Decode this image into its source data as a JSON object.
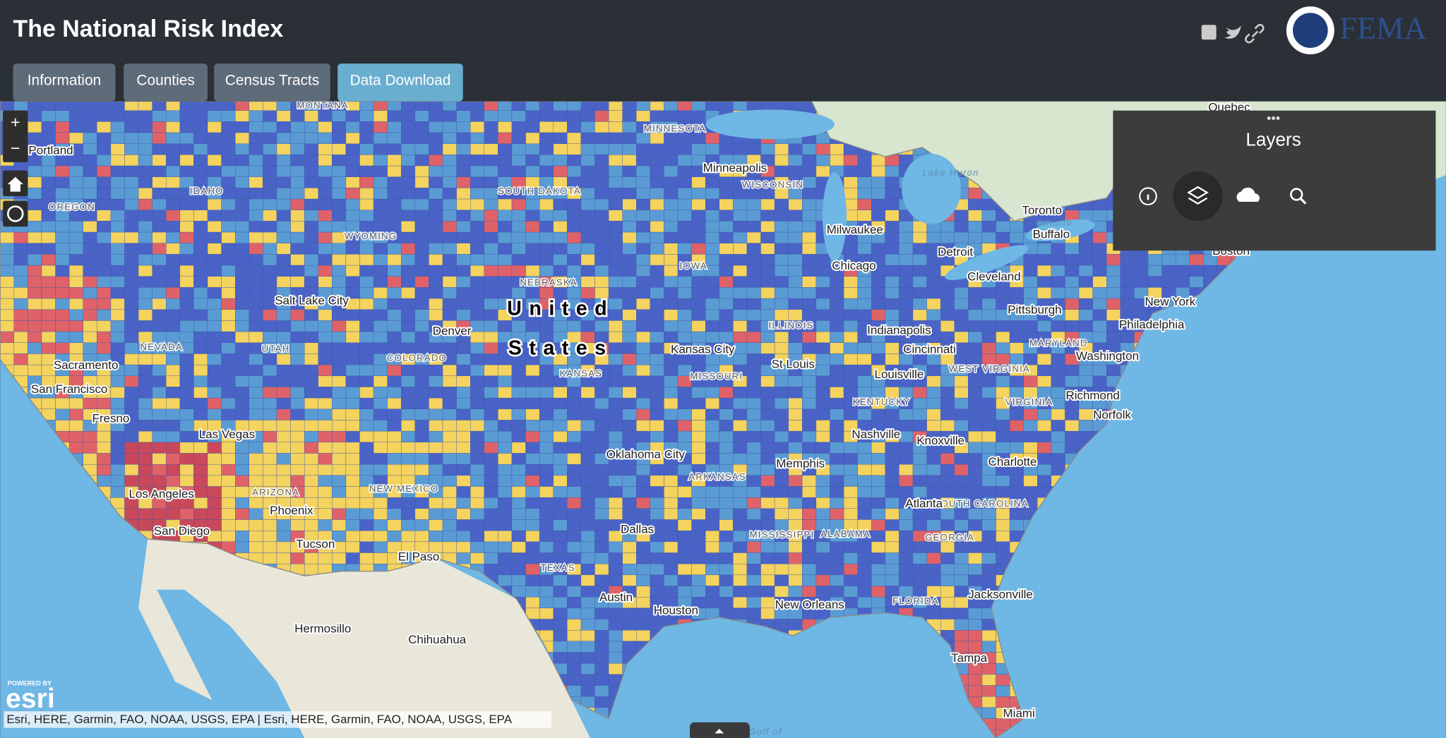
{
  "header": {
    "title": "The National Risk Index",
    "tabs": [
      "Information",
      "Counties",
      "Census Tracts",
      "Data Download"
    ],
    "logo": "FEMA"
  },
  "controls": {
    "zoom_in": "+",
    "zoom_out": "−"
  },
  "layers_panel": {
    "title": "Layers"
  },
  "map": {
    "country": [
      "United",
      "States"
    ],
    "cities": [
      "Portland",
      "Salt Lake City",
      "Denver",
      "Sacramento",
      "San Francisco",
      "Fresno",
      "Las Vegas",
      "Los Angeles",
      "San Diego",
      "Phoenix",
      "Tucson",
      "El Paso",
      "Minneapolis",
      "Milwaukee",
      "Chicago",
      "Detroit",
      "Toronto",
      "Buffalo",
      "Boston",
      "Cleveland",
      "Pittsburgh",
      "New York",
      "Philadelphia",
      "Kansas City",
      "St Louis",
      "Indianapolis",
      "Cincinnati",
      "Louisville",
      "Washington",
      "Richmond",
      "Norfolk",
      "Nashville",
      "Knoxville",
      "Charlotte",
      "Oklahoma City",
      "Memphis",
      "Atlanta",
      "Dallas",
      "Austin",
      "Houston",
      "New Orleans",
      "Jacksonville",
      "Tampa",
      "Miami",
      "Hermosillo",
      "Chihuahua",
      "Quebec"
    ],
    "states": [
      "MONTANA",
      "MINNESOTA",
      "IDAHO",
      "OREGON",
      "SOUTH DAKOTA",
      "WISCONSIN",
      "WYOMING",
      "NEBRASKA",
      "IOWA",
      "ILLINOIS",
      "NEVADA",
      "UTAH",
      "COLORADO",
      "KANSAS",
      "MISSOURI",
      "WEST VIRGINIA",
      "MARYLAND",
      "KENTUCKY",
      "VIRGINIA",
      "ARIZONA",
      "NEW MEXICO",
      "ARKANSAS",
      "SOUTH CAROLINA",
      "MISSISSIPPI",
      "ALABAMA",
      "GEORGIA",
      "TEXAS",
      "FLORIDA"
    ],
    "water": [
      "Lake Huron",
      "Ontario",
      "Gulf of"
    ]
  },
  "attribution": "Esri, HERE, Garmin, FAO, NOAA, USGS, EPA | Esri, HERE, Garmin, FAO, NOAA, USGS, EPA",
  "esri": {
    "powered_by": "POWERED BY",
    "brand": "esri"
  }
}
